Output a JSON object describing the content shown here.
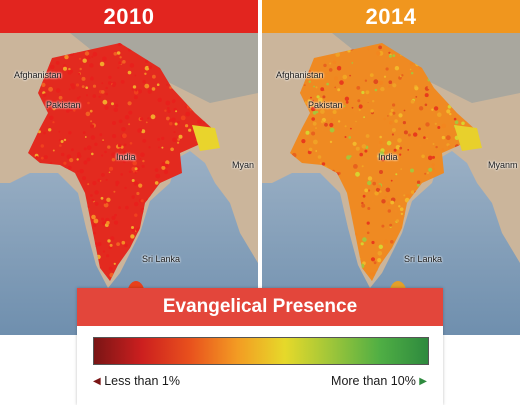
{
  "panels": [
    {
      "year": "2010",
      "header_color": "#e2251f",
      "labels": {
        "afghanistan": "Afghanistan",
        "pakistan": "Pakistan",
        "india": "India",
        "sri_lanka": "Sri Lanka",
        "myanmar": "Myan"
      },
      "palette": [
        "#e8201c",
        "#e8201c",
        "#e8201c",
        "#e8201c",
        "#e8201c",
        "#f0401e",
        "#f16022",
        "#f58a26",
        "#e8201c",
        "#f3a72c"
      ]
    },
    {
      "year": "2014",
      "header_color": "#f0961e",
      "labels": {
        "afghanistan": "Afghanistan",
        "pakistan": "Pakistan",
        "india": "India",
        "sri_lanka": "Sri Lanka",
        "myanmar": "Myanm"
      },
      "palette": [
        "#f2861f",
        "#f0a126",
        "#e8621e",
        "#f3b82b",
        "#d9d22f",
        "#e83b1c",
        "#f08a23",
        "#a9c43a",
        "#f2a523",
        "#e14a1e"
      ]
    }
  ],
  "legend": {
    "title": "Evangelical Presence",
    "title_color": "#e3463b",
    "low_label": "Less than 1%",
    "high_label": "More than 10%",
    "low_color": "#7a1515",
    "high_color": "#2e8a3e",
    "gradient": [
      "#7a1515",
      "#cc1f1f",
      "#e8501d",
      "#f39b23",
      "#e6d92a",
      "#9cc53a",
      "#4fae44",
      "#2e8a3e"
    ]
  }
}
